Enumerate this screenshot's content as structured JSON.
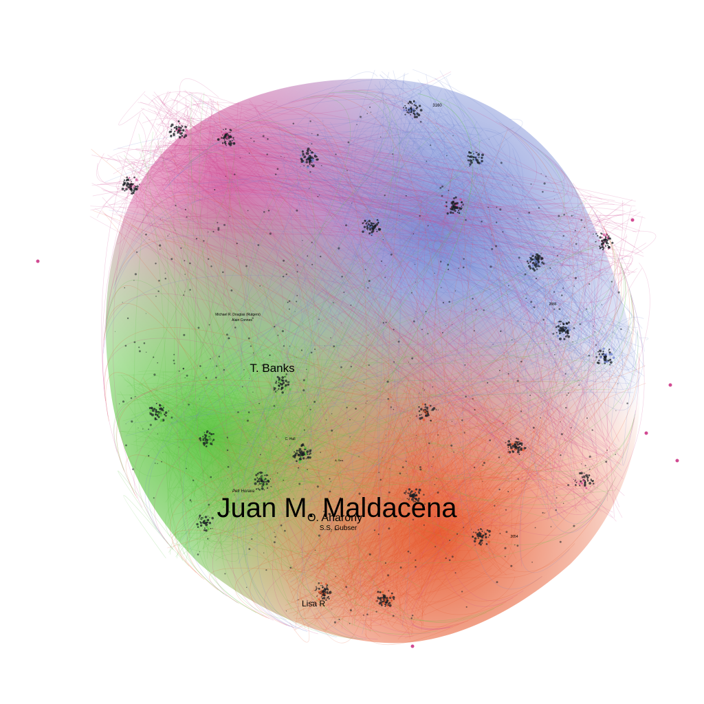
{
  "graph": {
    "background": "#ffffff",
    "communities": [
      {
        "color": "#5bc43f"
      },
      {
        "color": "#e6582c"
      },
      {
        "color": "#6f83d2"
      },
      {
        "color": "#d14a92"
      }
    ],
    "hub_color": "#1a1f24",
    "labels": [
      {
        "key": "maldacena",
        "text": "Juan M. Maldacena"
      },
      {
        "key": "banks",
        "text": "T. Banks"
      },
      {
        "key": "aharony",
        "text": "O. Aharony"
      },
      {
        "key": "gubser",
        "text": "S.S. Gubser"
      },
      {
        "key": "lisa",
        "text": "Lisa R"
      },
      {
        "key": "horava",
        "text": "Petr Horava"
      },
      {
        "key": "douglas",
        "text": "Michael R. Douglas (Rutgers)"
      },
      {
        "key": "connes",
        "text": "Alain Connes"
      },
      {
        "key": "hull",
        "text": "C. Hull"
      },
      {
        "key": "sen",
        "text": "A. Sen"
      },
      {
        "key": "top-cluster",
        "text": "3160"
      },
      {
        "key": "right-cluster",
        "text": "2886"
      },
      {
        "key": "bottom-right-cluster",
        "text": "2054"
      }
    ]
  }
}
